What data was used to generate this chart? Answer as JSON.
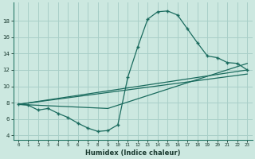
{
  "xlabel": "Humidex (Indice chaleur)",
  "ylabel": "",
  "bg_color": "#cce8e0",
  "grid_color": "#a8cfc8",
  "line_color": "#1a6b5e",
  "xlim": [
    -0.5,
    23.5
  ],
  "ylim": [
    3.5,
    20.2
  ],
  "xticks": [
    0,
    1,
    2,
    3,
    4,
    5,
    6,
    7,
    8,
    9,
    10,
    11,
    12,
    13,
    14,
    15,
    16,
    17,
    18,
    19,
    20,
    21,
    22,
    23
  ],
  "yticks": [
    4,
    6,
    8,
    10,
    12,
    14,
    16,
    18
  ],
  "line1_x": [
    0,
    1,
    2,
    3,
    4,
    5,
    6,
    7,
    8,
    9,
    10,
    11,
    12,
    13,
    14,
    15,
    16,
    17,
    18,
    19,
    20,
    21,
    22,
    23
  ],
  "line1_y": [
    7.8,
    7.7,
    7.1,
    7.3,
    6.7,
    6.2,
    5.5,
    4.9,
    4.5,
    4.6,
    5.3,
    11.1,
    14.8,
    18.2,
    19.1,
    19.2,
    18.7,
    17.0,
    15.3,
    13.7,
    13.5,
    12.9,
    12.8,
    12.0
  ],
  "line2_x": [
    0,
    23
  ],
  "line2_y": [
    7.8,
    12.0
  ],
  "line3_x": [
    0,
    23
  ],
  "line3_y": [
    7.8,
    11.5
  ],
  "line4_x": [
    0,
    9,
    23
  ],
  "line4_y": [
    7.8,
    7.3,
    12.8
  ]
}
